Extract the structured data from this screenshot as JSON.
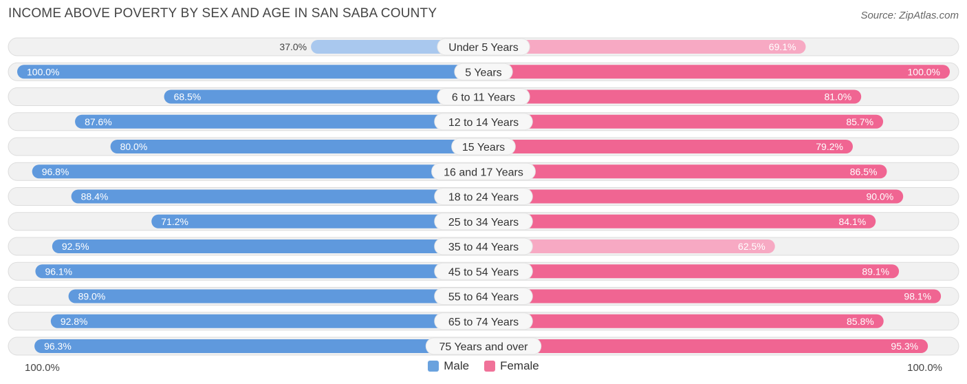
{
  "title": "INCOME ABOVE POVERTY BY SEX AND AGE IN SAN SABA COUNTY",
  "source": "Source: ZipAtlas.com",
  "axis": {
    "left_label": "100.0%",
    "right_label": "100.0%"
  },
  "legend": [
    {
      "label": "Male",
      "color": "#6aa2de"
    },
    {
      "label": "Female",
      "color": "#f07299"
    }
  ],
  "colors": {
    "male_full": "#5f99dd",
    "male_light": "#a9c8ee",
    "female_full": "#f06592",
    "female_light": "#f7a9c3",
    "track": "#f1f1f1",
    "track_border": "#dcdcdc"
  },
  "chart_data": {
    "type": "bar",
    "orientation": "horizontal-diverging",
    "title": "INCOME ABOVE POVERTY BY SEX AND AGE IN SAN SABA COUNTY",
    "categories": [
      "Under 5 Years",
      "5 Years",
      "6 to 11 Years",
      "12 to 14 Years",
      "15 Years",
      "16 and 17 Years",
      "18 to 24 Years",
      "25 to 34 Years",
      "35 to 44 Years",
      "45 to 54 Years",
      "55 to 64 Years",
      "65 to 74 Years",
      "75 Years and over"
    ],
    "series": [
      {
        "name": "Male",
        "values": [
          37.0,
          100.0,
          68.5,
          87.6,
          80.0,
          96.8,
          88.4,
          71.2,
          92.5,
          96.1,
          89.0,
          92.8,
          96.3
        ],
        "labels": [
          "37.0%",
          "100.0%",
          "68.5%",
          "87.6%",
          "80.0%",
          "96.8%",
          "88.4%",
          "71.2%",
          "92.5%",
          "96.1%",
          "89.0%",
          "92.8%",
          "96.3%"
        ]
      },
      {
        "name": "Female",
        "values": [
          69.1,
          100.0,
          81.0,
          85.7,
          79.2,
          86.5,
          90.0,
          84.1,
          62.5,
          89.1,
          98.1,
          85.8,
          95.3
        ],
        "labels": [
          "69.1%",
          "100.0%",
          "81.0%",
          "85.7%",
          "79.2%",
          "86.5%",
          "90.0%",
          "84.1%",
          "62.5%",
          "89.1%",
          "98.1%",
          "85.8%",
          "95.3%"
        ]
      }
    ],
    "xlim": [
      0,
      100
    ],
    "xlabel_left": "100.0%",
    "xlabel_right": "100.0%",
    "legend_position": "bottom-center"
  }
}
